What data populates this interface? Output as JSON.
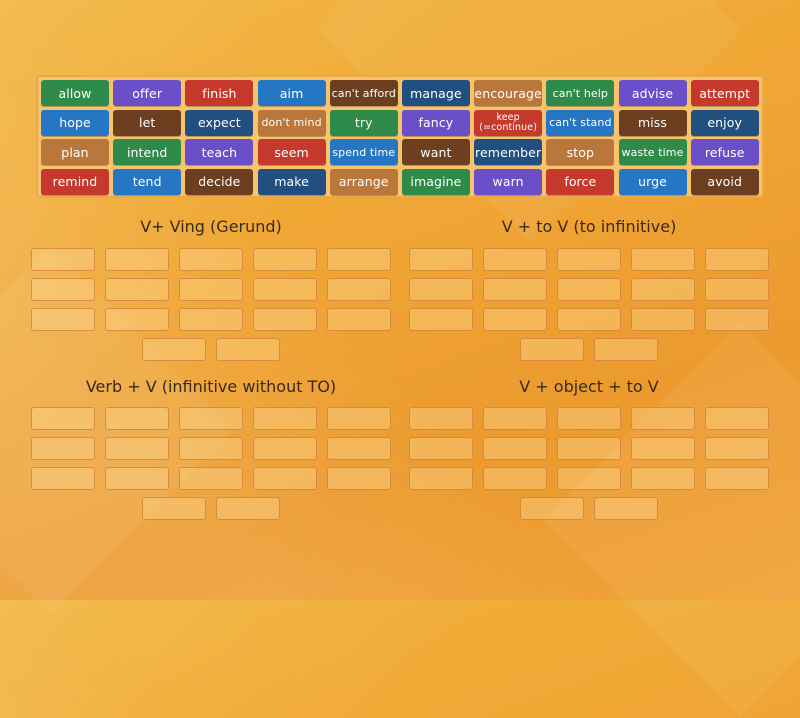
{
  "tiles": [
    {
      "label": "allow",
      "color": "#2e8b4a"
    },
    {
      "label": "offer",
      "color": "#6a4fc9"
    },
    {
      "label": "finish",
      "color": "#c53a2c"
    },
    {
      "label": "aim",
      "color": "#2577c4"
    },
    {
      "label": "can't afford",
      "color": "#6b3f1f"
    },
    {
      "label": "manage",
      "color": "#204f80"
    },
    {
      "label": "encourage",
      "color": "#b9773c"
    },
    {
      "label": "can't help",
      "color": "#2e8b4a"
    },
    {
      "label": "advise",
      "color": "#6a4fc9"
    },
    {
      "label": "attempt",
      "color": "#c53a2c"
    },
    {
      "label": "hope",
      "color": "#2577c4"
    },
    {
      "label": "let",
      "color": "#6b3f1f"
    },
    {
      "label": "expect",
      "color": "#204f80"
    },
    {
      "label": "don't mind",
      "color": "#b9773c"
    },
    {
      "label": "try",
      "color": "#2e8b4a"
    },
    {
      "label": "fancy",
      "color": "#6a4fc9"
    },
    {
      "label": "keep (=continue)",
      "color": "#c53a2c"
    },
    {
      "label": "can't stand",
      "color": "#2577c4"
    },
    {
      "label": "miss",
      "color": "#6b3f1f"
    },
    {
      "label": "enjoy",
      "color": "#204f80"
    },
    {
      "label": "plan",
      "color": "#b9773c"
    },
    {
      "label": "intend",
      "color": "#2e8b4a"
    },
    {
      "label": "teach",
      "color": "#6a4fc9"
    },
    {
      "label": "seem",
      "color": "#c53a2c"
    },
    {
      "label": "spend time",
      "color": "#2577c4"
    },
    {
      "label": "want",
      "color": "#6b3f1f"
    },
    {
      "label": "remember",
      "color": "#204f80"
    },
    {
      "label": "stop",
      "color": "#b9773c"
    },
    {
      "label": "waste time",
      "color": "#2e8b4a"
    },
    {
      "label": "refuse",
      "color": "#6a4fc9"
    },
    {
      "label": "remind",
      "color": "#c53a2c"
    },
    {
      "label": "tend",
      "color": "#2577c4"
    },
    {
      "label": "decide",
      "color": "#6b3f1f"
    },
    {
      "label": "make",
      "color": "#204f80"
    },
    {
      "label": "arrange",
      "color": "#b9773c"
    },
    {
      "label": "imagine",
      "color": "#2e8b4a"
    },
    {
      "label": "warn",
      "color": "#6a4fc9"
    },
    {
      "label": "force",
      "color": "#c53a2c"
    },
    {
      "label": "urge",
      "color": "#2577c4"
    },
    {
      "label": "avoid",
      "color": "#6b3f1f"
    }
  ],
  "groups": [
    {
      "title": "V+ Ving (Gerund)",
      "slots": [
        5,
        5,
        5,
        2
      ]
    },
    {
      "title": "V + to V (to infinitive)",
      "slots": [
        5,
        5,
        5,
        2
      ]
    },
    {
      "title": "Verb + V (infinitive without TO)",
      "slots": [
        5,
        5,
        5,
        2
      ]
    },
    {
      "title": "V + object + to V",
      "slots": [
        5,
        5,
        5,
        2
      ]
    }
  ]
}
